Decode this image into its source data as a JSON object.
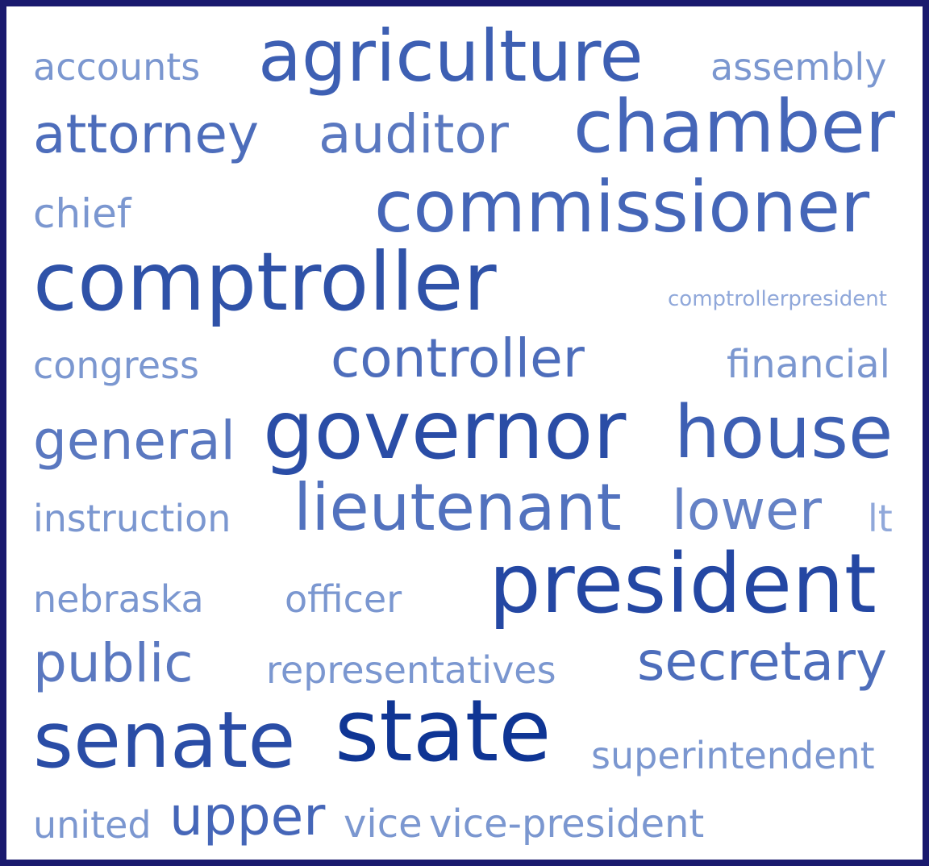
{
  "words": [
    {
      "text": "accounts",
      "color": "#7b97d0"
    },
    {
      "text": "agriculture",
      "color": "#3d5fb3"
    },
    {
      "text": "assembly",
      "color": "#7b97d0"
    },
    {
      "text": "attorney",
      "color": "#4d6dbb"
    },
    {
      "text": "auditor",
      "color": "#5a78c0"
    },
    {
      "text": "chamber",
      "color": "#4566b8"
    },
    {
      "text": "chief",
      "color": "#7b97d0"
    },
    {
      "text": "commissioner",
      "color": "#4566b8"
    },
    {
      "text": "comptroller",
      "color": "#2f52a8"
    },
    {
      "text": "comptrollerpresident",
      "color": "#90a8da"
    },
    {
      "text": "congress",
      "color": "#7b97d0"
    },
    {
      "text": "controller",
      "color": "#4d6dbb"
    },
    {
      "text": "financial",
      "color": "#7b97d0"
    },
    {
      "text": "general",
      "color": "#5a78c0"
    },
    {
      "text": "governor",
      "color": "#2a4da6"
    },
    {
      "text": "house",
      "color": "#3d5fb3"
    },
    {
      "text": "instruction",
      "color": "#7b97d0"
    },
    {
      "text": "lieutenant",
      "color": "#5272be"
    },
    {
      "text": "lower",
      "color": "#6582c6"
    },
    {
      "text": "lt",
      "color": "#90a8da"
    },
    {
      "text": "nebraska",
      "color": "#7b97d0"
    },
    {
      "text": "officer",
      "color": "#7b97d0"
    },
    {
      "text": "president",
      "color": "#2447a3"
    },
    {
      "text": "public",
      "color": "#5a78c0"
    },
    {
      "text": "representatives",
      "color": "#7b97d0"
    },
    {
      "text": "secretary",
      "color": "#4d6dbb"
    },
    {
      "text": "senate",
      "color": "#2a4da6"
    },
    {
      "text": "state",
      "color": "#0f3594"
    },
    {
      "text": "superintendent",
      "color": "#7b97d0"
    },
    {
      "text": "united",
      "color": "#7b97d0"
    },
    {
      "text": "upper",
      "color": "#4566b8"
    },
    {
      "text": "vice",
      "color": "#7b97d0"
    },
    {
      "text": "vice-president",
      "color": "#7b97d0"
    }
  ],
  "border_color": "#1a1a6e"
}
